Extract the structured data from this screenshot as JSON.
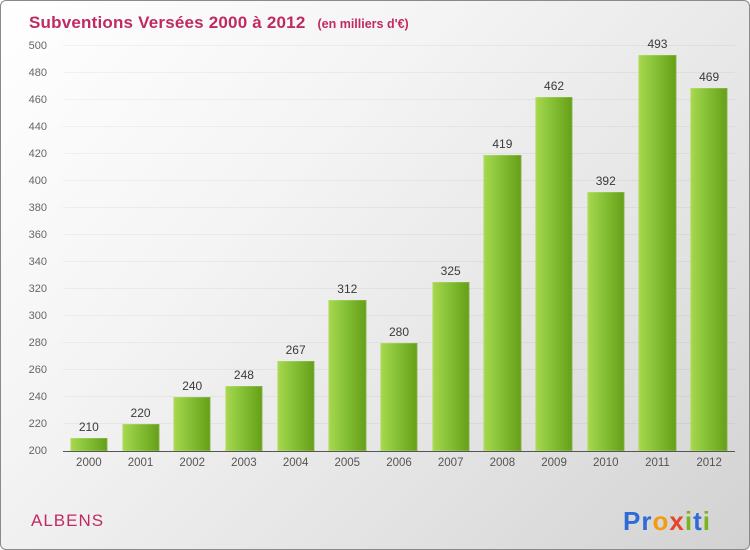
{
  "header": {
    "title": "Subventions Versées 2000 à 2012",
    "subtitle": "(en milliers d'€)"
  },
  "footer": {
    "location": "ALBENS"
  },
  "brand": {
    "name": "Proxiti",
    "letters": [
      {
        "ch": "P",
        "color": "#2e6bd8"
      },
      {
        "ch": "r",
        "color": "#2e6bd8"
      },
      {
        "ch": "o",
        "color": "#f39c12"
      },
      {
        "ch": "x",
        "color": "#e8432a"
      },
      {
        "ch": "i",
        "color": "#7ab41d"
      },
      {
        "ch": "t",
        "color": "#2e6bd8"
      },
      {
        "ch": "i",
        "color": "#7ab41d"
      }
    ]
  },
  "colors": {
    "title": "#c02a63",
    "location": "#c02a63",
    "bar_gradient_start": "#a9d84e",
    "bar_gradient_end": "#659f17"
  },
  "chart_data": {
    "type": "bar",
    "title": "Subventions Versées 2000 à 2012",
    "subtitle": "(en milliers d'€)",
    "categories": [
      "2000",
      "2001",
      "2002",
      "2003",
      "2004",
      "2005",
      "2006",
      "2007",
      "2008",
      "2009",
      "2010",
      "2011",
      "2012"
    ],
    "values": [
      210,
      220,
      240,
      248,
      267,
      312,
      280,
      325,
      419,
      462,
      392,
      493,
      469
    ],
    "xlabel": "",
    "ylabel": "",
    "ylim": [
      200,
      500
    ],
    "ytick_step": 20,
    "grid": "subtle",
    "legend": "none"
  }
}
